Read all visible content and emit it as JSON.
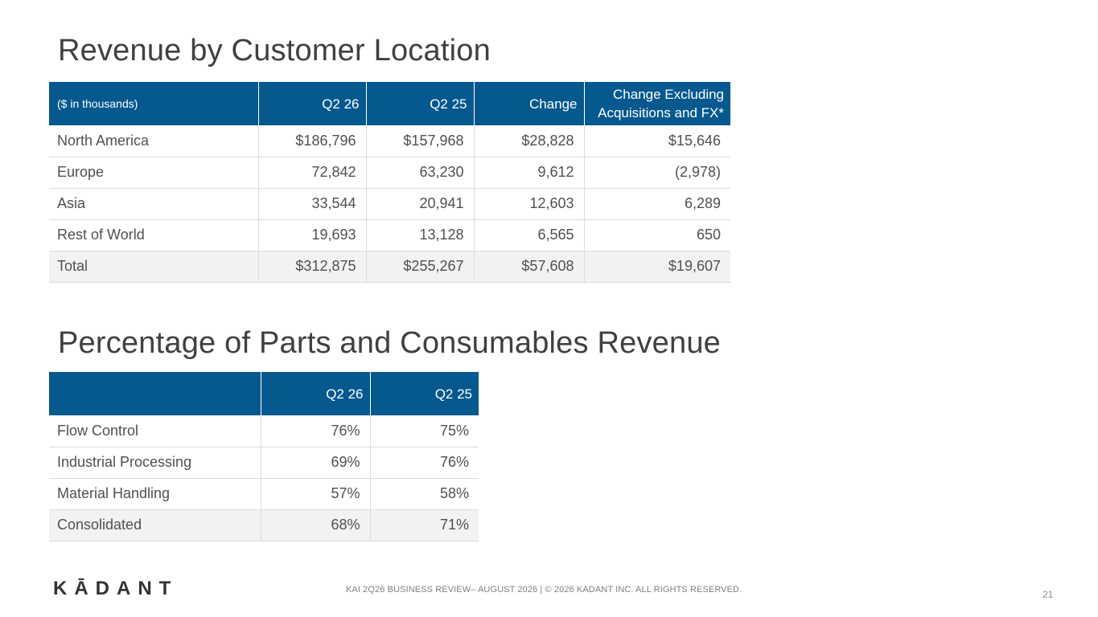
{
  "slide": {
    "title1": "Revenue by Customer Location",
    "title2": "Percentage of Parts and Consumables Revenue",
    "footer": "KAI 2Q26 BUSINESS REVIEW– AUGUST 2026 | © 2026 KADANT INC. ALL RIGHTS RESERVED.",
    "page_number": "21",
    "logo_text": "KĀDANT"
  },
  "table1": {
    "headers": [
      "($ in thousands)",
      "Q2 26",
      "Q2 25",
      "Change",
      "Change Excluding Acquisitions and FX*"
    ],
    "rows": [
      [
        "North America",
        "$186,796",
        "$157,968",
        "$28,828",
        "$15,646"
      ],
      [
        "Europe",
        "72,842",
        "63,230",
        "9,612",
        "(2,978)"
      ],
      [
        "Asia",
        "33,544",
        "20,941",
        "12,603",
        "6,289"
      ],
      [
        "Rest of World",
        "19,693",
        "13,128",
        "6,565",
        "650"
      ],
      [
        "Total",
        "$312,875",
        "$255,267",
        "$57,608",
        "$19,607"
      ]
    ]
  },
  "table2": {
    "headers": [
      "",
      "Q2 26",
      "Q2 25"
    ],
    "rows": [
      [
        "Flow Control",
        "76%",
        "75%"
      ],
      [
        "Industrial Processing",
        "69%",
        "76%"
      ],
      [
        "Material Handling",
        "57%",
        "58%"
      ],
      [
        "Consolidated",
        "68%",
        "71%"
      ]
    ]
  }
}
